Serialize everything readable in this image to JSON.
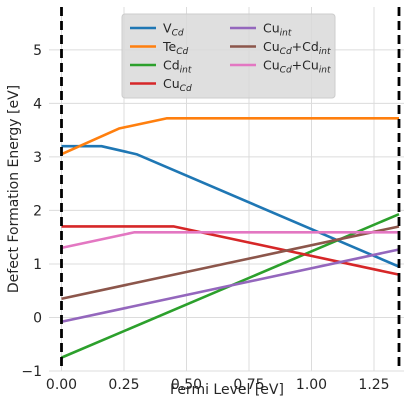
{
  "chart_data": {
    "type": "line",
    "title": "",
    "xlabel": "Fermi Level [eV]",
    "ylabel": "Defect Formation Energy [eV]",
    "xlim": [
      -0.05,
      1.37
    ],
    "ylim": [
      -1,
      5.8
    ],
    "xticks": [
      "0.00",
      "0.25",
      "0.50",
      "0.75",
      "1.00",
      "1.25"
    ],
    "xtick_values": [
      0,
      0.25,
      0.5,
      0.75,
      1.0,
      1.25
    ],
    "yticks": [
      "−1",
      "0",
      "1",
      "2",
      "3",
      "4",
      "5"
    ],
    "ytick_values": [
      -1,
      0,
      1,
      2,
      3,
      4,
      5
    ],
    "grid": true,
    "legend_placement": "upper-center",
    "vlines": {
      "x": [
        0,
        1.35
      ],
      "color": "#000000",
      "style": "dashed"
    },
    "series": [
      {
        "name": "V",
        "sub": "Cd",
        "color": "#1f77b4",
        "points": [
          [
            0,
            3.2
          ],
          [
            0.16,
            3.2
          ],
          [
            0.3,
            3.05
          ],
          [
            1.35,
            0.95
          ]
        ]
      },
      {
        "name": "Te",
        "sub": "Cd",
        "color": "#ff7f0e",
        "points": [
          [
            0,
            3.05
          ],
          [
            0.23,
            3.53
          ],
          [
            0.42,
            3.72
          ],
          [
            1.35,
            3.72
          ]
        ]
      },
      {
        "name": "Cd",
        "sub": "int",
        "color": "#2ca02c",
        "points": [
          [
            0,
            -0.75
          ],
          [
            1.35,
            1.93
          ]
        ]
      },
      {
        "name": "Cu",
        "sub": "Cd",
        "color": "#d62728",
        "points": [
          [
            0,
            1.7
          ],
          [
            0.45,
            1.7
          ],
          [
            1.35,
            0.8
          ]
        ]
      },
      {
        "name": "Cu",
        "sub": "int",
        "color": "#9467bd",
        "points": [
          [
            0,
            -0.08
          ],
          [
            1.35,
            1.27
          ]
        ]
      },
      {
        "name": "Cu",
        "sub": "Cd",
        "name2": "+Cd",
        "sub2": "int",
        "color": "#8c564b",
        "points": [
          [
            0,
            0.35
          ],
          [
            1.35,
            1.7
          ]
        ]
      },
      {
        "name": "Cu",
        "sub": "Cd",
        "name2": "+Cu",
        "sub2": "int",
        "color": "#e377c2",
        "points": [
          [
            0,
            1.3
          ],
          [
            0.29,
            1.59
          ],
          [
            1.35,
            1.59
          ]
        ]
      }
    ]
  }
}
